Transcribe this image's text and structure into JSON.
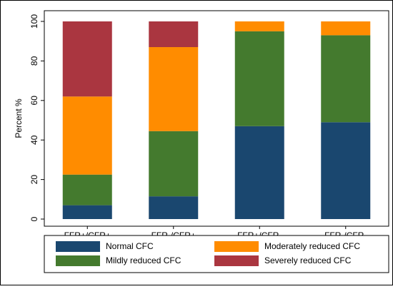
{
  "chart_data": {
    "type": "bar",
    "stacked": true,
    "categories": [
      "FFR+/CFR+",
      "FFR-/CFR+",
      "FFR+/CFR-",
      "FFR-/CFR-"
    ],
    "series": [
      {
        "name": "Normal CFC",
        "color": "#1a476f",
        "values": [
          7,
          11.5,
          47,
          49
        ]
      },
      {
        "name": "Mildly reduced CFC",
        "color": "#447a2e",
        "values": [
          15.5,
          33,
          48,
          44
        ]
      },
      {
        "name": "Moderately reduced CFC",
        "color": "#ff8c00",
        "values": [
          39.5,
          42.5,
          5,
          7
        ]
      },
      {
        "name": "Severely reduced CFC",
        "color": "#aa3640",
        "values": [
          38,
          13,
          0,
          0
        ]
      }
    ],
    "xlabel": "",
    "ylabel": "Percent %",
    "ylim": [
      0,
      100
    ],
    "yticks": [
      0,
      20,
      40,
      60,
      80,
      100
    ],
    "grid": "none",
    "legend_position": "bottom"
  }
}
